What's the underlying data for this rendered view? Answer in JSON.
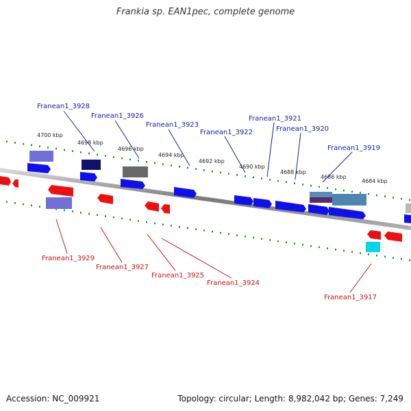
{
  "title": "Frankia sp. EAN1pec, complete genome",
  "footer": {
    "accession": "Accession: NC_009921",
    "topology": "Topology: circular; Length: 8,982,042 bp; Genes: 7,249"
  },
  "colors": {
    "forward_gene": "#1010ee",
    "reverse_gene": "#ee1010",
    "label_forward": "#1a1aa8",
    "label_reverse": "#cc1111",
    "tick": "#1a8a1a",
    "backbone": "#8a8a8a"
  },
  "ticks": [
    "4700 kbp",
    "4698 kbp",
    "4696 kbp",
    "4694 kbp",
    "4692 kbp",
    "4690 kbp",
    "4688 kbp",
    "4686 kbp",
    "4684 kbp"
  ],
  "labels_forward": [
    "Franean1_3928",
    "Franean1_3926",
    "Franean1_3923",
    "Franean1_3922",
    "Franean1_3921",
    "Franean1_3920",
    "Franean1_3919"
  ],
  "labels_reverse": [
    "Franean1_3929",
    "Franean1_3927",
    "Franean1_3925",
    "Franean1_3924",
    "Franean1_3917"
  ]
}
